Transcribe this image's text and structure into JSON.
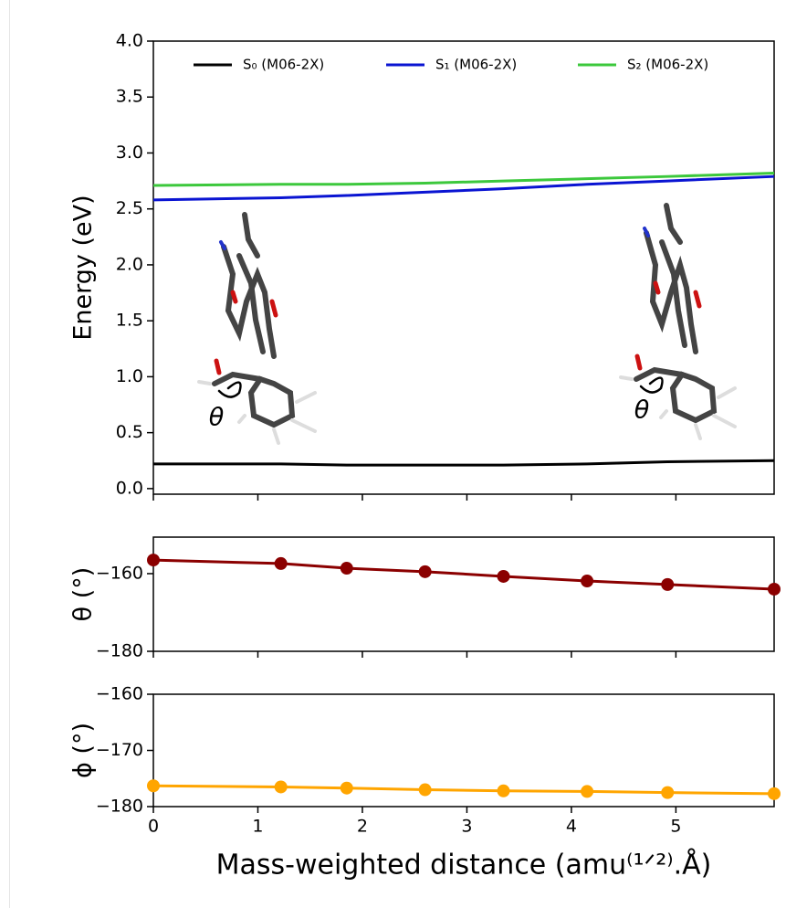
{
  "chart_data": [
    {
      "type": "line",
      "ylabel": "Energy (eV)",
      "x": [
        0,
        1.22,
        1.85,
        2.6,
        3.35,
        4.15,
        4.92,
        5.94
      ],
      "series": [
        {
          "name": "S₀ (M06-2X)",
          "color": "#000000",
          "values": [
            0.22,
            0.22,
            0.21,
            0.21,
            0.21,
            0.22,
            0.24,
            0.25
          ]
        },
        {
          "name": "S₁ (M06-2X)",
          "color": "#0a14d2",
          "values": [
            2.58,
            2.6,
            2.62,
            2.65,
            2.68,
            2.72,
            2.75,
            2.79
          ]
        },
        {
          "name": "S₂ (M06-2X)",
          "color": "#3cc83c",
          "values": [
            2.71,
            2.72,
            2.72,
            2.73,
            2.75,
            2.77,
            2.79,
            2.82
          ]
        }
      ],
      "xlim": [
        0,
        5.94
      ],
      "xticks": [
        0,
        1,
        2,
        3,
        4,
        5
      ],
      "ylim": [
        -0.05,
        4.0
      ],
      "yticks": [
        {
          "value": 0,
          "label": "0.0"
        },
        0.5,
        {
          "value": 1,
          "label": "1.0"
        },
        1.5,
        {
          "value": 2,
          "label": "2.0"
        },
        2.5,
        {
          "value": 3,
          "label": "3.0"
        },
        3.5,
        {
          "value": 4,
          "label": "4.0"
        }
      ],
      "legend": "top",
      "annotations": [
        "θ",
        "θ"
      ]
    },
    {
      "type": "line",
      "ylabel": "θ (°)",
      "marker": true,
      "x": [
        0,
        1.22,
        1.85,
        2.6,
        3.35,
        4.15,
        4.92,
        5.94
      ],
      "series": [
        {
          "color": "#8b0000",
          "values": [
            -156.5,
            -157.4,
            -158.6,
            -159.5,
            -160.7,
            -161.9,
            -162.8,
            -164.0
          ]
        }
      ],
      "xlim": [
        0,
        5.94
      ],
      "xticks": [
        0,
        1,
        2,
        3,
        4,
        5
      ],
      "ylim": [
        -180,
        -150.6
      ],
      "yticks": [
        {
          "value": -180,
          "label": "−180"
        },
        {
          "value": -160,
          "label": "−160"
        }
      ]
    },
    {
      "type": "line",
      "ylabel": "ϕ (°)",
      "marker": true,
      "xlabel": "Mass-weighted distance (amu⁽¹ᐟ²⁾.Å)",
      "x": [
        0,
        1.22,
        1.85,
        2.6,
        3.35,
        4.15,
        4.92,
        5.94
      ],
      "series": [
        {
          "color": "#ffa500",
          "values": [
            -176.3,
            -176.5,
            -176.7,
            -177.0,
            -177.2,
            -177.3,
            -177.5,
            -177.7
          ]
        }
      ],
      "xlim": [
        0,
        5.94
      ],
      "xticks": [
        0,
        1,
        2,
        3,
        4,
        5
      ],
      "ylim": [
        -180,
        -160
      ],
      "yticks": [
        {
          "value": -180,
          "label": "−180"
        },
        {
          "value": -170,
          "label": "−170"
        },
        {
          "value": -160,
          "label": "−160"
        }
      ]
    }
  ]
}
